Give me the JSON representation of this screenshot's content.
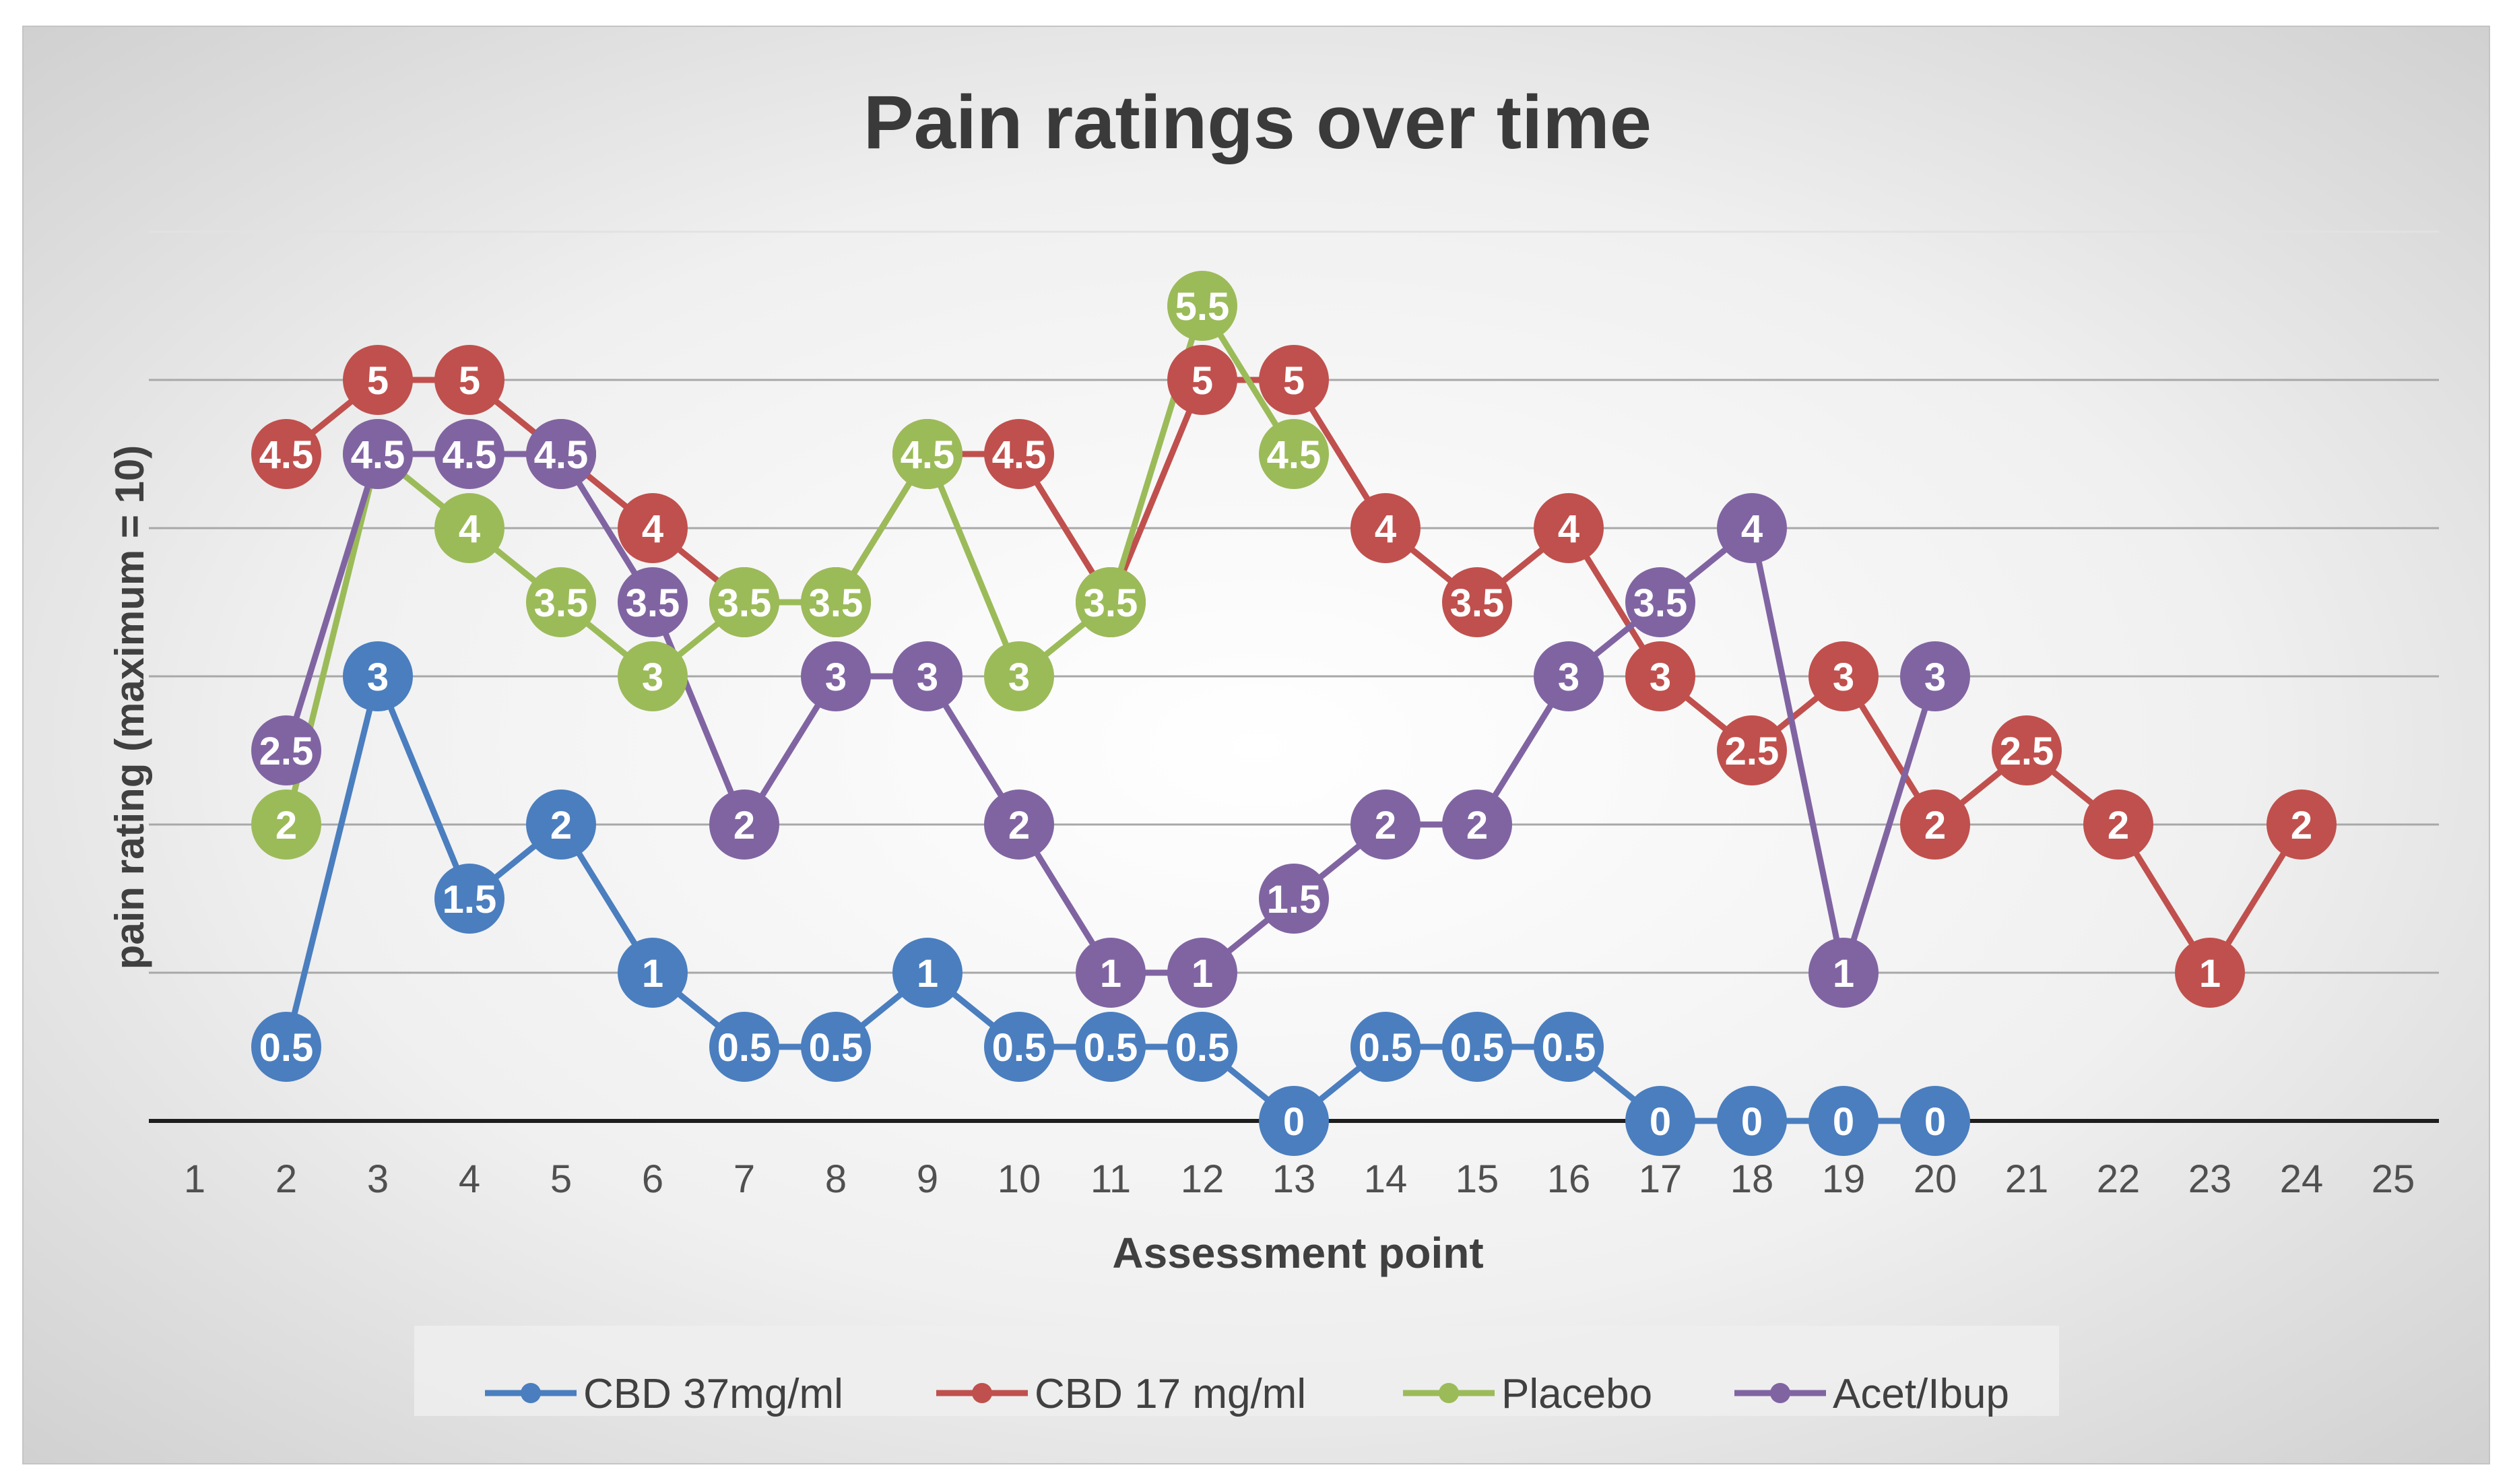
{
  "chart_data": {
    "type": "line",
    "title": "Pain ratings over time",
    "xlabel": "Assessment point",
    "ylabel": "pain rating (maximum = 10)",
    "categories": [
      "1",
      "2",
      "3",
      "4",
      "5",
      "6",
      "7",
      "8",
      "9",
      "10",
      "11",
      "12",
      "13",
      "14",
      "15",
      "16",
      "17",
      "18",
      "19",
      "20",
      "21",
      "22",
      "23",
      "24",
      "25"
    ],
    "ylim": [
      0,
      6
    ],
    "grid": true,
    "legend_position": "bottom",
    "series": [
      {
        "name": "CBD 37mg/ml",
        "color": "#4a7ebf",
        "values": [
          null,
          0.5,
          3,
          1.5,
          2,
          1,
          0.5,
          0.5,
          1,
          0.5,
          0.5,
          0.5,
          0,
          0.5,
          0.5,
          0.5,
          0,
          0,
          0,
          0,
          null,
          null,
          null,
          null,
          null
        ]
      },
      {
        "name": "CBD 17 mg/ml",
        "color": "#c0504d",
        "values": [
          null,
          4.5,
          5,
          5,
          4.5,
          4,
          3.5,
          3.5,
          4.5,
          4.5,
          3.5,
          5,
          5,
          4,
          3.5,
          4,
          3,
          2.5,
          3,
          2,
          2.5,
          2,
          1,
          2,
          null
        ]
      },
      {
        "name": "Placebo",
        "color": "#9bbb59",
        "values": [
          null,
          2,
          4.5,
          4,
          3.5,
          3,
          3.5,
          3.5,
          4.5,
          3,
          3.5,
          5.5,
          4.5,
          null,
          null,
          null,
          null,
          null,
          null,
          null,
          null,
          null,
          null,
          null,
          null
        ]
      },
      {
        "name": "Acet/Ibup",
        "color": "#8064a2",
        "values": [
          null,
          2.5,
          4.5,
          4.5,
          4.5,
          3.5,
          2,
          3,
          3,
          2,
          1,
          1,
          1.5,
          2,
          2,
          3,
          3.5,
          4,
          1,
          3,
          null,
          null,
          null,
          null,
          null
        ]
      }
    ]
  }
}
